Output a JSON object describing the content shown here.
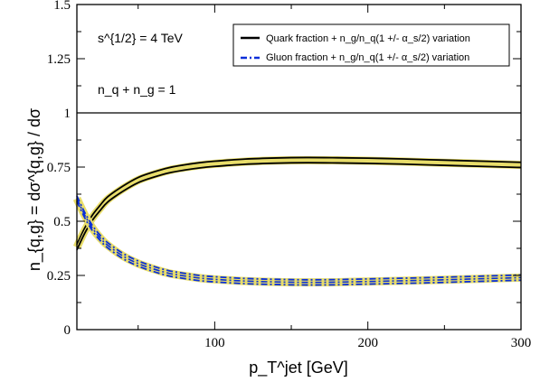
{
  "chart_data": {
    "type": "line",
    "title": "",
    "xlabel": "p_T^jet [GeV]",
    "ylabel": "n_{q,g} = dσ^{q,g} / dσ",
    "xlim": [
      10,
      300
    ],
    "ylim": [
      0,
      1.5
    ],
    "x_ticks": [
      "100",
      "200",
      "300"
    ],
    "y_ticks": [
      "0",
      "0.25",
      "0.5",
      "0.75",
      "1",
      "1.25",
      "1.5"
    ],
    "grid": false,
    "legend_position": "top-right",
    "annotations": [
      "s^{1/2} = 4 TeV",
      "n_q + n_g = 1"
    ],
    "reference_line": {
      "y": 1
    },
    "series": [
      {
        "name": "Quark fraction + n_g/n_q(1 +/- α_s/2) variation",
        "style": "solid",
        "color": "#000000",
        "band_color": "#e8dd6a",
        "x": [
          10,
          15,
          20,
          25,
          30,
          40,
          50,
          60,
          70,
          80,
          90,
          100,
          120,
          140,
          160,
          180,
          200,
          220,
          240,
          260,
          280,
          300
        ],
        "y": [
          0.38,
          0.455,
          0.515,
          0.56,
          0.6,
          0.65,
          0.69,
          0.715,
          0.735,
          0.748,
          0.758,
          0.765,
          0.775,
          0.78,
          0.782,
          0.781,
          0.779,
          0.776,
          0.772,
          0.768,
          0.764,
          0.76
        ],
        "variation": 0.012
      },
      {
        "name": "Gluon fraction + n_g/n_q(1 +/- α_s/2) variation",
        "style": "dash-dot",
        "color": "#0a2fd9",
        "band_color": "#e8dd6a",
        "x": [
          10,
          15,
          20,
          25,
          30,
          40,
          50,
          60,
          70,
          80,
          90,
          100,
          120,
          140,
          160,
          180,
          200,
          220,
          240,
          260,
          280,
          300
        ],
        "y": [
          0.605,
          0.53,
          0.47,
          0.425,
          0.39,
          0.34,
          0.305,
          0.28,
          0.26,
          0.248,
          0.238,
          0.232,
          0.224,
          0.22,
          0.218,
          0.219,
          0.222,
          0.225,
          0.228,
          0.232,
          0.236,
          0.24
        ],
        "variation": 0.012
      }
    ]
  }
}
